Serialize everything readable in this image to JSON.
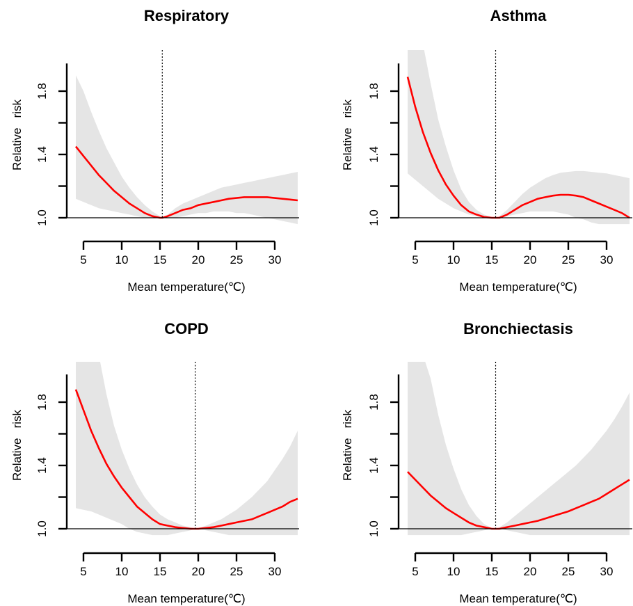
{
  "chart_data": [
    {
      "type": "line",
      "title": "Respiratory",
      "xlabel": "Mean temperature(℃)",
      "ylabel": "Relative   risk",
      "xlim": [
        4,
        33
      ],
      "ylim": [
        1.0,
        1.9
      ],
      "xticks": [
        5,
        10,
        15,
        20,
        25,
        30
      ],
      "xtick_labels": [
        "5",
        "10",
        "15",
        "20",
        "25",
        "30"
      ],
      "yticks": [
        1.0,
        1.4,
        1.8
      ],
      "ytick_labels": [
        "1.0",
        "1.4",
        "1.8"
      ],
      "reference_line": 15.3,
      "series": [
        {
          "x": [
            4,
            5,
            6,
            7,
            8,
            9,
            10,
            11,
            12,
            13,
            14,
            15,
            15.3,
            16,
            17,
            18,
            19,
            20,
            21,
            22,
            23,
            24,
            25,
            26,
            27,
            28,
            29,
            30,
            31,
            32,
            33
          ],
          "y": [
            1.45,
            1.39,
            1.33,
            1.27,
            1.22,
            1.17,
            1.13,
            1.09,
            1.06,
            1.03,
            1.01,
            1.0,
            1.0,
            1.01,
            1.03,
            1.05,
            1.06,
            1.08,
            1.09,
            1.1,
            1.11,
            1.12,
            1.125,
            1.13,
            1.13,
            1.13,
            1.13,
            1.125,
            1.12,
            1.115,
            1.11
          ],
          "lower": [
            1.12,
            1.1,
            1.08,
            1.06,
            1.05,
            1.04,
            1.03,
            1.02,
            1.01,
            1.0,
            1.0,
            1.0,
            1.0,
            1.0,
            1.0,
            1.01,
            1.02,
            1.03,
            1.03,
            1.04,
            1.04,
            1.04,
            1.03,
            1.03,
            1.02,
            1.01,
            1.0,
            0.99,
            0.98,
            0.97,
            0.96
          ],
          "upper": [
            1.9,
            1.8,
            1.67,
            1.55,
            1.44,
            1.35,
            1.26,
            1.19,
            1.13,
            1.08,
            1.04,
            1.01,
            1.0,
            1.02,
            1.06,
            1.09,
            1.11,
            1.13,
            1.15,
            1.17,
            1.19,
            1.2,
            1.21,
            1.22,
            1.23,
            1.24,
            1.25,
            1.26,
            1.27,
            1.28,
            1.29
          ]
        }
      ]
    },
    {
      "type": "line",
      "title": "Asthma",
      "xlabel": "Mean temperature(℃)",
      "ylabel": "Relative   risk",
      "xlim": [
        4,
        33
      ],
      "ylim": [
        1.0,
        1.9
      ],
      "xticks": [
        5,
        10,
        15,
        20,
        25,
        30
      ],
      "xtick_labels": [
        "5",
        "10",
        "15",
        "20",
        "25",
        "30"
      ],
      "yticks": [
        1.0,
        1.4,
        1.8
      ],
      "ytick_labels": [
        "1.0",
        "1.4",
        "1.8"
      ],
      "reference_line": 15.5,
      "series": [
        {
          "x": [
            4,
            5,
            6,
            7,
            8,
            9,
            10,
            11,
            12,
            13,
            14,
            15,
            15.5,
            16,
            17,
            18,
            19,
            20,
            21,
            22,
            23,
            24,
            25,
            26,
            27,
            28,
            29,
            30,
            31,
            32,
            33
          ],
          "y": [
            1.89,
            1.7,
            1.54,
            1.41,
            1.3,
            1.21,
            1.14,
            1.08,
            1.04,
            1.02,
            1.005,
            1.0,
            1.0,
            1.0,
            1.02,
            1.05,
            1.08,
            1.1,
            1.12,
            1.13,
            1.14,
            1.145,
            1.145,
            1.14,
            1.13,
            1.11,
            1.09,
            1.07,
            1.05,
            1.03,
            1.0
          ],
          "lower": [
            1.28,
            1.24,
            1.2,
            1.16,
            1.12,
            1.09,
            1.06,
            1.04,
            1.02,
            1.01,
            1.0,
            1.0,
            1.0,
            1.0,
            1.01,
            1.02,
            1.03,
            1.04,
            1.04,
            1.04,
            1.04,
            1.03,
            1.02,
            1.0,
            0.99,
            0.97,
            0.96,
            0.96,
            0.96,
            0.96,
            0.96
          ],
          "upper": [
            2.1,
            2.1,
            2.1,
            1.85,
            1.62,
            1.45,
            1.3,
            1.18,
            1.1,
            1.05,
            1.02,
            1.005,
            1.0,
            1.01,
            1.05,
            1.1,
            1.15,
            1.19,
            1.22,
            1.25,
            1.27,
            1.285,
            1.29,
            1.295,
            1.295,
            1.29,
            1.285,
            1.28,
            1.27,
            1.26,
            1.25
          ]
        }
      ]
    },
    {
      "type": "line",
      "title": "COPD",
      "xlabel": "Mean temperature(℃)",
      "ylabel": "Relative   risk",
      "xlim": [
        4,
        33
      ],
      "ylim": [
        1.0,
        1.9
      ],
      "xticks": [
        5,
        10,
        15,
        20,
        25,
        30
      ],
      "xtick_labels": [
        "5",
        "10",
        "15",
        "20",
        "25",
        "30"
      ],
      "yticks": [
        1.0,
        1.4,
        1.8
      ],
      "ytick_labels": [
        "1.0",
        "1.4",
        "1.8"
      ],
      "reference_line": 19.6,
      "series": [
        {
          "x": [
            4,
            5,
            6,
            7,
            8,
            9,
            10,
            11,
            12,
            13,
            14,
            15,
            16,
            17,
            18,
            19,
            19.6,
            20,
            21,
            22,
            23,
            24,
            25,
            26,
            27,
            28,
            29,
            30,
            31,
            32,
            33
          ],
          "y": [
            1.88,
            1.75,
            1.62,
            1.51,
            1.41,
            1.33,
            1.26,
            1.2,
            1.14,
            1.1,
            1.06,
            1.03,
            1.02,
            1.01,
            1.005,
            1.0,
            1.0,
            1.0,
            1.005,
            1.01,
            1.02,
            1.03,
            1.04,
            1.05,
            1.06,
            1.08,
            1.1,
            1.12,
            1.14,
            1.17,
            1.19
          ],
          "lower": [
            1.13,
            1.12,
            1.11,
            1.09,
            1.07,
            1.05,
            1.03,
            1.0,
            0.98,
            0.97,
            0.96,
            0.96,
            0.96,
            0.97,
            0.98,
            0.99,
            1.0,
            1.0,
            0.99,
            0.98,
            0.97,
            0.96,
            0.96,
            0.96,
            0.96,
            0.96,
            0.96,
            0.96,
            0.96,
            0.96,
            0.96
          ],
          "upper": [
            2.1,
            2.1,
            2.1,
            2.1,
            1.85,
            1.65,
            1.5,
            1.38,
            1.28,
            1.2,
            1.14,
            1.09,
            1.06,
            1.04,
            1.02,
            1.01,
            1.0,
            1.005,
            1.02,
            1.04,
            1.06,
            1.09,
            1.12,
            1.16,
            1.2,
            1.25,
            1.3,
            1.37,
            1.44,
            1.52,
            1.62
          ]
        }
      ]
    },
    {
      "type": "line",
      "title": "Bronchiectasis",
      "xlabel": "Mean temperature(℃)",
      "ylabel": "Relative   risk",
      "xlim": [
        4,
        33
      ],
      "ylim": [
        1.0,
        1.9
      ],
      "xticks": [
        5,
        10,
        15,
        20,
        25,
        30
      ],
      "xtick_labels": [
        "5",
        "10",
        "15",
        "20",
        "25",
        "30"
      ],
      "yticks": [
        1.0,
        1.4,
        1.8
      ],
      "ytick_labels": [
        "1.0",
        "1.4",
        "1.8"
      ],
      "reference_line": 15.5,
      "series": [
        {
          "x": [
            4,
            5,
            6,
            7,
            8,
            9,
            10,
            11,
            12,
            13,
            14,
            15,
            15.5,
            16,
            17,
            18,
            19,
            20,
            21,
            22,
            23,
            24,
            25,
            26,
            27,
            28,
            29,
            30,
            31,
            32,
            33
          ],
          "y": [
            1.36,
            1.31,
            1.26,
            1.21,
            1.17,
            1.13,
            1.1,
            1.07,
            1.04,
            1.02,
            1.01,
            1.0,
            1.0,
            1.0,
            1.01,
            1.02,
            1.03,
            1.04,
            1.05,
            1.065,
            1.08,
            1.095,
            1.11,
            1.13,
            1.15,
            1.17,
            1.19,
            1.22,
            1.25,
            1.28,
            1.31
          ],
          "lower": [
            0.96,
            0.96,
            0.96,
            0.96,
            0.96,
            0.96,
            0.96,
            0.96,
            0.97,
            0.98,
            0.99,
            1.0,
            1.0,
            1.0,
            0.99,
            0.98,
            0.97,
            0.96,
            0.96,
            0.96,
            0.96,
            0.96,
            0.96,
            0.96,
            0.96,
            0.96,
            0.96,
            0.96,
            0.96,
            0.96,
            0.96
          ],
          "upper": [
            2.1,
            2.1,
            2.1,
            1.95,
            1.72,
            1.53,
            1.38,
            1.25,
            1.15,
            1.08,
            1.03,
            1.005,
            1.0,
            1.01,
            1.04,
            1.08,
            1.12,
            1.16,
            1.2,
            1.24,
            1.28,
            1.32,
            1.36,
            1.4,
            1.45,
            1.5,
            1.56,
            1.62,
            1.69,
            1.77,
            1.86
          ]
        }
      ]
    }
  ]
}
